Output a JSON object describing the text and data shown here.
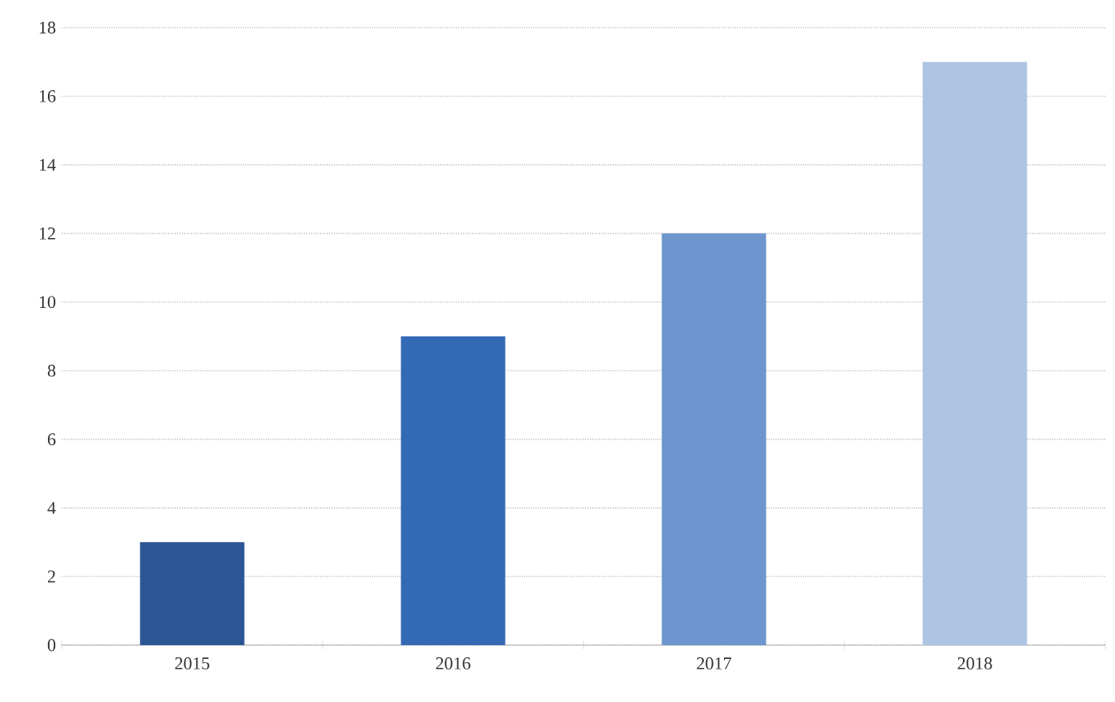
{
  "chart_data": {
    "type": "bar",
    "categories": [
      "2015",
      "2016",
      "2017",
      "2018"
    ],
    "values": [
      3,
      9,
      12,
      17
    ],
    "colors": [
      "#2c5596",
      "#3469b6",
      "#6d95ce",
      "#adc4e3"
    ],
    "ylim": [
      0,
      18
    ],
    "yticks": [
      0,
      2,
      4,
      6,
      8,
      10,
      12,
      14,
      16,
      18
    ],
    "grid": "y"
  }
}
